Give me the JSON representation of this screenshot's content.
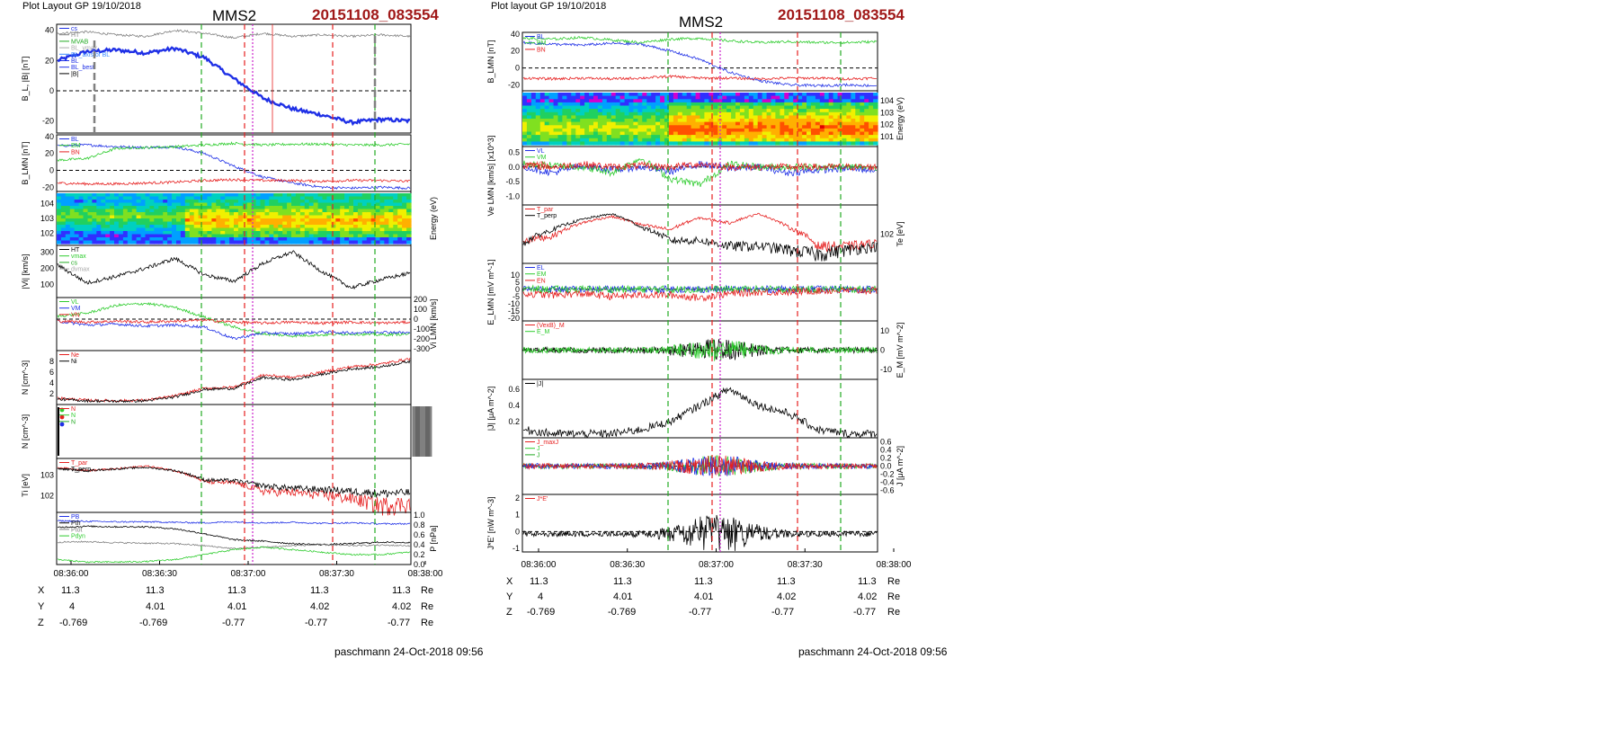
{
  "colors": {
    "orbit_id": "#a01818",
    "blue": "#1f30e6",
    "green": "#2ecc2e",
    "red": "#e62020",
    "magenta": "#cc22cc",
    "grey": "#808080",
    "light_blue": "#3c8cff",
    "dashed_green": "#22aa22",
    "dashed_red": "#e62020",
    "dotted_magenta": "#cc22cc"
  },
  "left": {
    "header": "Plot Layout GP 19/10/2018",
    "spacecraft": "MMS2",
    "orbit_id": "20151108_083554",
    "footer": "paschmann 24-Oct-2018 09:56",
    "time_ticks": [
      "08:36:00",
      "08:36:30",
      "08:37:00",
      "08:37:30",
      "08:38:00"
    ],
    "ephemeris": {
      "X": {
        "label": "X",
        "values": [
          "11.3",
          "11.3",
          "11.3",
          "11.3",
          "11.3"
        ],
        "unit": "Re"
      },
      "Y": {
        "label": "Y",
        "values": [
          "4",
          "4.01",
          "4.01",
          "4.02",
          "4.02"
        ],
        "unit": "Re"
      },
      "Z": {
        "label": "Z",
        "values": [
          "-0.769",
          "-0.769",
          "-0.77",
          "-0.77",
          "-0.77"
        ],
        "unit": "Re"
      }
    }
  },
  "right": {
    "header": "Plot layout GP 19/10/2018",
    "spacecraft": "MMS2",
    "orbit_id": "20151108_083554",
    "footer": "paschmann 24-Oct-2018 09:56",
    "time_ticks": [
      "08:36:00",
      "08:36:30",
      "08:37:00",
      "08:37:30",
      "08:38:00"
    ],
    "ephemeris": {
      "X": {
        "label": "X",
        "values": [
          "11.3",
          "11.3",
          "11.3",
          "11.3",
          "11.3"
        ],
        "unit": "Re"
      },
      "Y": {
        "label": "Y",
        "values": [
          "4",
          "4.01",
          "4.01",
          "4.02",
          "4.02"
        ],
        "unit": "Re"
      },
      "Z": {
        "label": "Z",
        "values": [
          "-0.769",
          "-0.769",
          "-0.77",
          "-0.77",
          "-0.77"
        ],
        "unit": "Re"
      }
    }
  },
  "chart_data": [
    {
      "type": "line",
      "panel": "left-1",
      "ylabel": "B_L, |B| [nT]",
      "ylim": [
        -28,
        44
      ],
      "yticks": [
        "40",
        "20",
        "0",
        "-20"
      ],
      "legend": [
        "cs",
        "HT",
        "MVAB",
        "BL_vmax",
        "BL_axis of BL",
        "BL",
        "BL_best",
        "|B|"
      ],
      "series": [
        {
          "name": "BL",
          "color": "blue",
          "values": [
            20,
            26,
            27,
            25,
            28,
            22,
            8,
            -5,
            -12,
            -16,
            -21,
            -19,
            -20
          ]
        },
        {
          "name": "|B|",
          "color": "grey",
          "values": [
            38,
            39,
            37,
            36,
            40,
            38,
            35,
            38,
            36,
            37,
            36,
            37,
            36
          ]
        }
      ]
    },
    {
      "type": "line",
      "panel": "left-2",
      "ylabel": "B_LMN [nT]",
      "ylim": [
        -25,
        42
      ],
      "yticks": [
        "40",
        "20",
        "0",
        "-20"
      ],
      "legend": [
        "BL",
        "BM",
        "BN"
      ],
      "series": [
        {
          "name": "BL",
          "color": "blue",
          "values": [
            29,
            30,
            28,
            27,
            28,
            20,
            5,
            -8,
            -15,
            -20,
            -21,
            -20,
            -21
          ]
        },
        {
          "name": "BM",
          "color": "green",
          "values": [
            12,
            14,
            26,
            27,
            28,
            30,
            32,
            30,
            31,
            31,
            30,
            30,
            31
          ]
        },
        {
          "name": "BN",
          "color": "red",
          "values": [
            -15,
            -16,
            -16,
            -15,
            -14,
            -12,
            -11,
            -12,
            -12,
            -13,
            -12,
            -12,
            -13
          ]
        }
      ]
    },
    {
      "type": "heatmap",
      "panel": "left-3",
      "ylabel": "Energy (eV)",
      "yticks": [
        "10^4",
        "10^3",
        "10^2"
      ]
    },
    {
      "type": "line",
      "panel": "left-4",
      "ylabel": "|Vi| [km/s]",
      "ylim": [
        20,
        340
      ],
      "yticks": [
        "300",
        "200",
        "100"
      ],
      "legend": [
        "HT",
        "vmax",
        "cs",
        "dvmax"
      ],
      "series": [
        {
          "name": "|Vi|",
          "color": "black",
          "values": [
            220,
            110,
            150,
            200,
            260,
            160,
            120,
            230,
            300,
            180,
            80,
            130,
            170
          ]
        }
      ]
    },
    {
      "type": "line",
      "panel": "left-5",
      "ylabel": "Vi LMN [km/s]",
      "ylim": [
        -320,
        220
      ],
      "yticks": [
        "200",
        "100",
        "0",
        "-100",
        "-200",
        "-300"
      ],
      "legend": [
        "VL",
        "VM",
        "VN"
      ],
      "series": [
        {
          "name": "VL",
          "color": "green",
          "values": [
            30,
            60,
            140,
            160,
            120,
            20,
            -80,
            -150,
            -170,
            -160,
            -150,
            -160,
            -150
          ]
        },
        {
          "name": "VM",
          "color": "blue",
          "values": [
            -20,
            -60,
            -50,
            -70,
            -60,
            -80,
            -200,
            -140,
            -150,
            -130,
            -140,
            -130,
            -140
          ]
        },
        {
          "name": "VN",
          "color": "red",
          "values": [
            -20,
            -30,
            -20,
            -30,
            -20,
            -10,
            -30,
            -40,
            -30,
            -40,
            -30,
            -40,
            -30
          ]
        }
      ]
    },
    {
      "type": "line",
      "panel": "left-6",
      "ylabel": "N [cm^-3]",
      "ylim": [
        0,
        10
      ],
      "yticks": [
        "8",
        "6",
        "4",
        "2"
      ],
      "legend": [
        "Ne",
        "Ni"
      ],
      "series": [
        {
          "name": "Ne",
          "color": "red",
          "values": [
            1.2,
            0.8,
            0.7,
            0.8,
            1.6,
            3,
            3.2,
            5.5,
            5,
            6,
            7,
            7.5,
            8.5
          ]
        },
        {
          "name": "Ni",
          "color": "black",
          "values": [
            1,
            0.7,
            0.6,
            0.7,
            1.4,
            2.8,
            3,
            5,
            4.6,
            5.6,
            6.6,
            7,
            8
          ]
        }
      ]
    },
    {
      "type": "line",
      "panel": "left-7",
      "ylabel": "N [cm^-3]",
      "legend": [
        "N",
        "N",
        "N"
      ]
    },
    {
      "type": "line",
      "panel": "left-8",
      "ylabel": "Ti [eV]",
      "yticks": [
        "10^3",
        "10^2"
      ],
      "legend": [
        "T_par",
        "T_perp"
      ],
      "series": [
        {
          "name": "T_par",
          "color": "red",
          "values": [
            1100,
            900,
            1000,
            1200,
            900,
            450,
            420,
            250,
            230,
            200,
            160,
            110,
            120
          ]
        },
        {
          "name": "T_perp",
          "color": "black",
          "values": [
            1000,
            900,
            1000,
            1100,
            900,
            500,
            480,
            350,
            300,
            280,
            250,
            220,
            230
          ]
        }
      ]
    },
    {
      "type": "line",
      "panel": "left-9",
      "ylabel": "P [nPa]",
      "ylim": [
        0,
        1.05
      ],
      "yticks": [
        "1.0",
        "0.8",
        "0.6",
        "0.4",
        "0.2",
        "0.0"
      ],
      "legend": [
        "PB",
        "Pth",
        "Ptot",
        "Pdyn"
      ],
      "series": [
        {
          "name": "Ptot",
          "color": "blue",
          "values": [
            0.88,
            0.87,
            0.86,
            0.86,
            0.85,
            0.84,
            0.86,
            0.84,
            0.85,
            0.83,
            0.84,
            0.82,
            0.82
          ]
        },
        {
          "name": "Pth",
          "color": "black",
          "values": [
            0.75,
            0.77,
            0.76,
            0.76,
            0.72,
            0.62,
            0.5,
            0.47,
            0.42,
            0.4,
            0.42,
            0.45,
            0.44
          ]
        },
        {
          "name": "PB",
          "color": "grey",
          "values": [
            0.45,
            0.46,
            0.44,
            0.43,
            0.42,
            0.38,
            0.32,
            0.35,
            0.38,
            0.4,
            0.38,
            0.39,
            0.38
          ]
        },
        {
          "name": "Pdyn",
          "color": "green",
          "values": [
            0.1,
            0.05,
            0.05,
            0.06,
            0.1,
            0.2,
            0.3,
            0.35,
            0.3,
            0.25,
            0.2,
            0.2,
            0.25
          ]
        }
      ]
    },
    {
      "type": "line",
      "panel": "right-1",
      "ylabel": "B_LMN [nT]",
      "ylim": [
        -27,
        42
      ],
      "yticks": [
        "40",
        "20",
        "0",
        "-20"
      ],
      "legend": [
        "BL",
        "BM",
        "BN"
      ],
      "series": [
        {
          "name": "BL",
          "color": "blue",
          "values": [
            30,
            28,
            27,
            29,
            28,
            20,
            10,
            -5,
            -15,
            -20,
            -21,
            -20,
            -21
          ]
        },
        {
          "name": "BM",
          "color": "green",
          "values": [
            35,
            34,
            36,
            33,
            30,
            34,
            35,
            32,
            30,
            31,
            30,
            30,
            31
          ]
        },
        {
          "name": "BN",
          "color": "red",
          "values": [
            -12,
            -13,
            -12,
            -13,
            -12,
            -10,
            -12,
            -12,
            -13,
            -12,
            -12,
            -13,
            -12
          ]
        }
      ]
    },
    {
      "type": "heatmap",
      "panel": "right-2",
      "ylabel": "Energy (eV)",
      "yticks": [
        "10^4",
        "10^3",
        "10^2",
        "10^1"
      ]
    },
    {
      "type": "line",
      "panel": "right-3",
      "ylabel": "Ve LMN [km/s] [x10^3]",
      "ylim": [
        -1.3,
        0.7
      ],
      "yticks": [
        "0.5",
        "0.0",
        "-0.5",
        "-1.0"
      ],
      "legend": [
        "VL",
        "VM",
        "VN"
      ],
      "series": [
        {
          "name": "VL",
          "color": "blue",
          "values": [
            0,
            -0.2,
            0.05,
            -0.1,
            0,
            -0.15,
            0.1,
            -0.05,
            0,
            -0.2,
            -0.1,
            -0.05,
            -0.1
          ]
        },
        {
          "name": "VM",
          "color": "green",
          "values": [
            0.1,
            0.05,
            0,
            -0.2,
            0.3,
            -0.4,
            -0.6,
            0.1,
            0,
            0,
            0,
            0,
            0
          ]
        },
        {
          "name": "VN",
          "color": "red",
          "values": [
            0.05,
            0,
            0.1,
            0,
            0.05,
            0,
            0.1,
            0,
            0,
            0,
            0,
            0,
            0
          ]
        }
      ]
    },
    {
      "type": "line",
      "panel": "right-4",
      "ylabel": "Te [eV]",
      "yticks": [
        "10^2"
      ],
      "legend": [
        "T_par",
        "T_perp"
      ],
      "series": [
        {
          "name": "T_par",
          "color": "red",
          "values": [
            40,
            50,
            100,
            140,
            90,
            70,
            130,
            100,
            160,
            80,
            30,
            30,
            35
          ]
        },
        {
          "name": "T_perp",
          "color": "black",
          "values": [
            35,
            70,
            120,
            160,
            80,
            40,
            40,
            30,
            30,
            25,
            20,
            25,
            30
          ]
        }
      ]
    },
    {
      "type": "line",
      "panel": "right-5",
      "ylabel": "E_LMN [mV m^-1]",
      "ylim": [
        -22,
        18
      ],
      "yticks": [
        "10",
        "5",
        "0",
        "-5",
        "-10",
        "-15",
        "-20"
      ],
      "legend": [
        "EL",
        "EM",
        "EN"
      ],
      "series": [
        {
          "name": "EL",
          "color": "blue",
          "values": [
            0,
            0,
            0,
            0,
            0,
            0,
            0,
            0,
            0,
            0,
            0,
            0,
            0
          ]
        },
        {
          "name": "EM",
          "color": "green",
          "values": [
            0,
            0,
            0,
            0,
            0,
            0,
            0,
            0,
            0,
            0,
            0,
            0,
            0
          ]
        },
        {
          "name": "EN",
          "color": "red",
          "values": [
            -3,
            -4,
            -3,
            -5,
            -4,
            -4,
            -6,
            -3,
            -2,
            -2,
            -1,
            -1,
            -1
          ]
        }
      ]
    },
    {
      "type": "line",
      "panel": "right-6",
      "ylabel": "E_M [mV m^-2]",
      "ylim": [
        -15,
        15
      ],
      "yticks": [
        "10",
        "0",
        "-10"
      ],
      "legend": [
        "(VexB)_M",
        "E_M"
      ]
    },
    {
      "type": "line",
      "panel": "right-7",
      "ylabel": "|J| [μA m^-2]",
      "ylim": [
        0,
        0.72
      ],
      "yticks": [
        "0.6",
        "0.4",
        "0.2"
      ],
      "legend": [
        "|J|"
      ],
      "series": [
        {
          "name": "|J|",
          "color": "black",
          "values": [
            0.1,
            0.05,
            0.05,
            0.05,
            0.1,
            0.2,
            0.4,
            0.6,
            0.4,
            0.3,
            0.1,
            0.05,
            0.05
          ]
        }
      ]
    },
    {
      "type": "line",
      "panel": "right-8",
      "ylabel": "J [μA m^-2]",
      "ylim": [
        -0.7,
        0.7
      ],
      "yticks": [
        "0.6",
        "0.4",
        "0.2",
        "0.0",
        "-0.2",
        "-0.4",
        "-0.6"
      ],
      "legend": [
        "J_maxJ",
        "J",
        "J"
      ]
    },
    {
      "type": "line",
      "panel": "right-9",
      "ylabel": "J*E' [nW m^-3]",
      "ylim": [
        -1.2,
        2.2
      ],
      "yticks": [
        "2",
        "1",
        "0",
        "-1"
      ],
      "legend": [
        "J*E'"
      ]
    }
  ]
}
